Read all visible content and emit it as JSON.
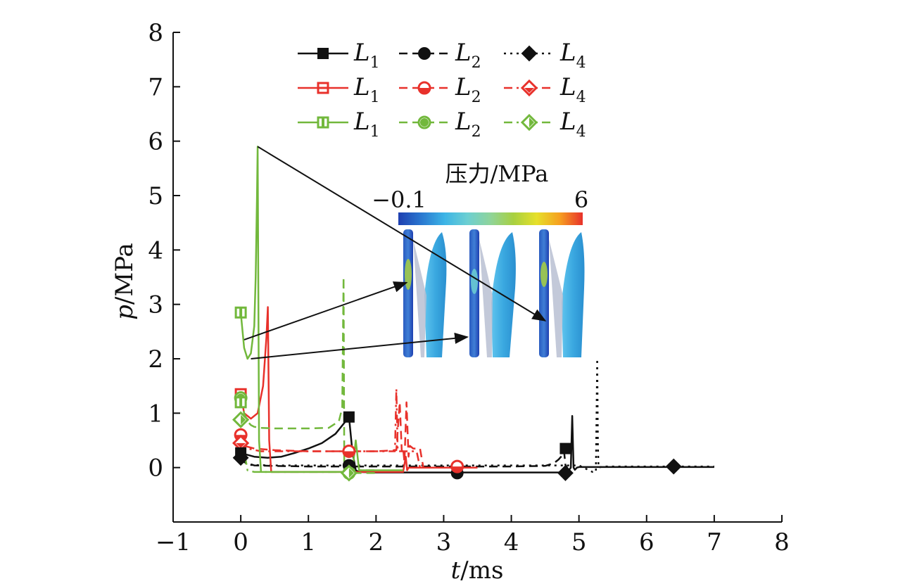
{
  "chart_data": {
    "type": "line",
    "xlabel_var": "t",
    "xlabel_unit": "/ms",
    "ylabel_var": "p",
    "ylabel_unit": "/MPa",
    "xlim": [
      -1,
      8
    ],
    "ylim": [
      -1,
      8
    ],
    "xticks": [
      "−1",
      "0",
      "1",
      "2",
      "3",
      "4",
      "5",
      "6",
      "7",
      "8"
    ],
    "yticks": [
      "8",
      "7",
      "6",
      "5",
      "4",
      "3",
      "2",
      "1",
      "0"
    ],
    "grid": false,
    "legend": {
      "placement": "top",
      "entries": [
        {
          "main": "L",
          "sub": "1"
        },
        {
          "main": "L",
          "sub": "2"
        },
        {
          "main": "L",
          "sub": "4"
        },
        {
          "main": "L",
          "sub": "1"
        },
        {
          "main": "L",
          "sub": "2"
        },
        {
          "main": "L",
          "sub": "4"
        },
        {
          "main": "L",
          "sub": "1"
        },
        {
          "main": "L",
          "sub": "2"
        },
        {
          "main": "L",
          "sub": "4"
        }
      ]
    },
    "colors": {
      "black": "#111111",
      "red": "#e8312b",
      "green": "#72b83c"
    },
    "series": [
      {
        "color": "black",
        "dash": "solid",
        "marker": "square",
        "x": [
          0,
          0.05,
          0.2,
          0.4,
          0.6,
          0.8,
          1.0,
          1.2,
          1.4,
          1.55,
          1.6,
          1.65,
          1.7,
          1.75,
          2.0,
          3.0,
          4.0,
          4.7,
          4.85,
          4.88,
          4.9,
          4.92,
          4.94,
          4.97,
          5.0,
          5.5,
          6.0,
          7.0
        ],
        "y": [
          0.28,
          0.25,
          0.2,
          0.18,
          0.2,
          0.27,
          0.35,
          0.45,
          0.62,
          0.85,
          0.93,
          0.3,
          -0.05,
          -0.08,
          -0.09,
          -0.09,
          -0.09,
          -0.09,
          -0.05,
          0.0,
          0.95,
          0.0,
          -0.04,
          0.0,
          0.01,
          0.01,
          0.01,
          0.01
        ],
        "markers": [
          [
            1.6,
            0.93
          ],
          [
            4.8,
            0.35
          ]
        ]
      },
      {
        "color": "black",
        "dash": "dashed",
        "marker": "circle",
        "x": [
          0,
          0.05,
          0.2,
          0.5,
          1.0,
          1.5,
          1.55,
          1.6,
          1.65,
          1.7,
          2.0,
          3.0,
          4.0,
          4.5,
          4.6,
          4.65,
          4.7,
          4.75,
          4.78,
          4.8,
          4.85,
          4.9
        ],
        "y": [
          0.2,
          0.1,
          0.04,
          0.03,
          0.02,
          0.02,
          0.08,
          0.04,
          0.02,
          0.02,
          0.02,
          0.02,
          0.02,
          0.03,
          0.07,
          0.1,
          0.15,
          0.22,
          0.3,
          0.05,
          -0.05,
          -0.1
        ],
        "markers": [
          [
            1.6,
            0.04
          ],
          [
            3.2,
            -0.1
          ]
        ]
      },
      {
        "color": "black",
        "dash": "dotted",
        "marker": "diamond",
        "x": [
          0,
          0.1,
          0.5,
          1.0,
          2.0,
          3.0,
          4.0,
          4.8,
          5.0,
          5.1,
          5.2,
          5.25,
          5.27,
          5.28,
          5.29,
          5.32,
          5.4,
          6.0,
          7.0
        ],
        "y": [
          0.18,
          0.05,
          0.04,
          0.04,
          0.04,
          0.04,
          0.04,
          0.04,
          0.04,
          -0.02,
          -0.08,
          -0.08,
          2.0,
          0.4,
          0.0,
          0.01,
          0.02,
          0.02,
          0.02
        ],
        "markers": [
          [
            4.8,
            -0.1
          ],
          [
            6.4,
            0.02
          ]
        ]
      },
      {
        "color": "red",
        "dash": "solid",
        "marker": "square-open",
        "x": [
          0,
          0.05,
          0.15,
          0.25,
          0.33,
          0.38,
          0.4,
          0.42,
          0.45,
          0.6,
          1.0,
          1.5,
          2.0,
          2.4,
          2.44,
          2.46,
          2.48,
          2.55,
          3.0,
          3.5
        ],
        "y": [
          1.35,
          1.0,
          0.9,
          1.0,
          1.5,
          2.4,
          2.95,
          0.5,
          -0.08,
          -0.08,
          -0.08,
          -0.08,
          -0.08,
          -0.08,
          0.2,
          -0.05,
          0.0,
          0.0,
          0.0,
          0.0
        ],
        "markers": []
      },
      {
        "color": "red",
        "dash": "dashed",
        "marker": "circle-open",
        "x": [
          0,
          0.05,
          0.2,
          0.5,
          1.0,
          1.5,
          1.6,
          2.0,
          2.3,
          2.35,
          2.38,
          2.4,
          2.42,
          2.45,
          2.48,
          2.5,
          2.55,
          2.6,
          2.65,
          2.7,
          2.75,
          3.0,
          3.5
        ],
        "y": [
          0.6,
          0.4,
          0.35,
          0.32,
          0.3,
          0.3,
          0.3,
          0.3,
          0.32,
          1.2,
          0.3,
          0.35,
          0.1,
          1.2,
          0.2,
          0.4,
          0.35,
          0.35,
          0.35,
          0.0,
          0.0,
          0.0,
          0.0
        ],
        "markers": [
          [
            1.6,
            0.3
          ],
          [
            3.2,
            0.02
          ]
        ]
      },
      {
        "color": "red",
        "dash": "dashdot",
        "marker": "diamond-open",
        "x": [
          0,
          0.1,
          0.3,
          0.8,
          1.5,
          2.0,
          2.28,
          2.3,
          2.32,
          2.35,
          2.6,
          2.65,
          2.7,
          3.0,
          3.5
        ],
        "y": [
          0.5,
          0.35,
          0.3,
          0.3,
          0.3,
          0.3,
          0.3,
          1.45,
          0.3,
          0.3,
          0.3,
          0.0,
          0.0,
          0.0,
          0.0
        ],
        "markers": []
      },
      {
        "color": "green",
        "dash": "solid",
        "marker": "square-half",
        "x": [
          0,
          0.05,
          0.1,
          0.15,
          0.2,
          0.22,
          0.24,
          0.25,
          0.27,
          0.3,
          0.5,
          1.0,
          1.5,
          1.6,
          1.65,
          1.7,
          1.75,
          2.0,
          2.4
        ],
        "y": [
          2.85,
          2.2,
          2.0,
          2.1,
          2.6,
          3.5,
          5.0,
          5.9,
          0.5,
          -0.08,
          -0.08,
          -0.08,
          -0.08,
          -0.08,
          -0.08,
          0.5,
          -0.05,
          -0.05,
          -0.05
        ],
        "markers": []
      },
      {
        "color": "green",
        "dash": "dashed",
        "marker": "circle-half",
        "x": [
          0,
          0.05,
          0.1,
          0.15,
          0.2,
          0.3,
          0.5,
          1.0,
          1.3,
          1.45,
          1.5,
          1.52,
          1.53,
          1.55,
          1.6,
          1.7,
          2.0
        ],
        "y": [
          1.28,
          1.0,
          0.85,
          0.78,
          0.75,
          0.73,
          0.72,
          0.72,
          0.73,
          0.85,
          1.1,
          3.5,
          0.0,
          -0.1,
          -0.1,
          -0.1,
          -0.1
        ],
        "markers": [
          [
            1.6,
            -0.1
          ]
        ]
      },
      {
        "color": "green",
        "dash": "dashdot",
        "marker": "diamond-half",
        "x": [
          0,
          0.05,
          0.1,
          0.2,
          0.5,
          1.0,
          1.5,
          1.6,
          1.65,
          1.7,
          2.0
        ],
        "y": [
          0.9,
          0.3,
          -0.05,
          -0.08,
          -0.08,
          -0.08,
          -0.08,
          -0.08,
          -0.05,
          -0.05,
          -0.05
        ],
        "markers": []
      }
    ],
    "start_markers": [
      {
        "series": 6,
        "y": 2.85
      },
      {
        "series": 3,
        "y": 1.35
      },
      {
        "series": 7,
        "y": 1.28
      },
      {
        "series": 6,
        "y": 1.2
      },
      {
        "series": 8,
        "y": 0.88
      },
      {
        "series": 4,
        "y": 0.6
      },
      {
        "series": 5,
        "y": 0.45
      },
      {
        "series": 0,
        "y": 0.27
      },
      {
        "series": 2,
        "y": 0.18
      }
    ],
    "end_markers": [
      {
        "series": 8,
        "x": 1.6,
        "y": -0.1
      }
    ],
    "inset": {
      "colorbar_title": "压力/MPa",
      "colorbar_min": "−0.1",
      "colorbar_max": "6",
      "colorbar_colors": [
        "#1e3fb0",
        "#2a78d0",
        "#3cb4e6",
        "#6ccfd2",
        "#8fd49a",
        "#a8d040",
        "#e6e02a",
        "#f6a020",
        "#e8312b"
      ],
      "annotation_arrows": [
        {
          "from": [
            0.05,
            2.35
          ],
          "to": [
            2.45,
            3.4
          ]
        },
        {
          "from": [
            0.15,
            2.0
          ],
          "to": [
            3.35,
            2.4
          ]
        },
        {
          "from": [
            0.25,
            5.9
          ],
          "to": [
            4.5,
            2.7
          ]
        }
      ]
    }
  }
}
